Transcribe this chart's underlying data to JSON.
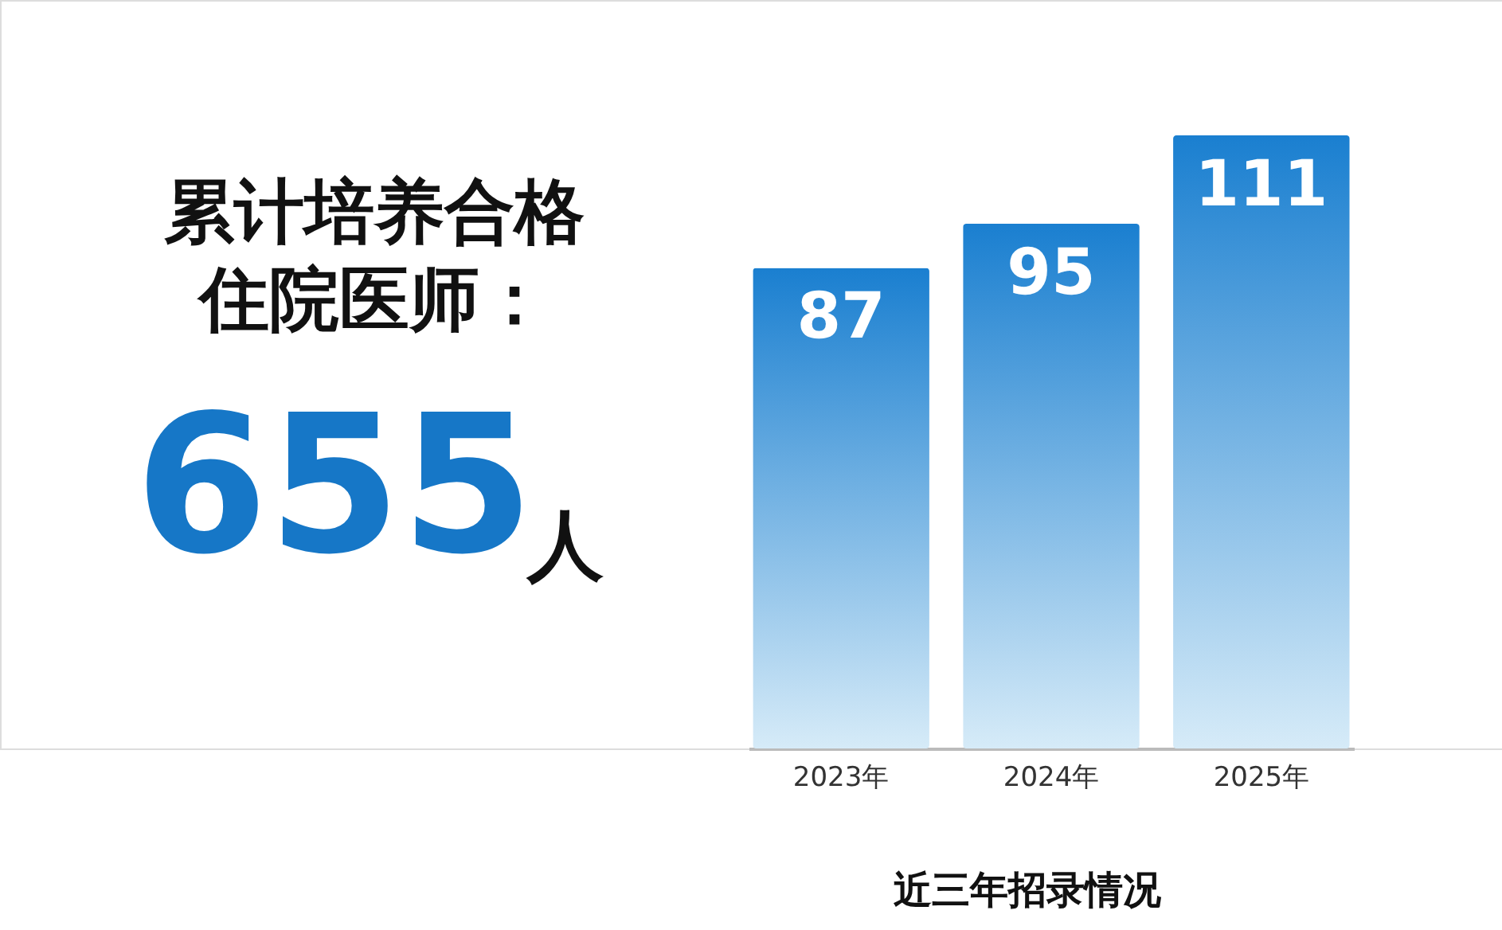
{
  "chart_data": {
    "type": "bar",
    "categories": [
      "2023年",
      "2024年",
      "2025年"
    ],
    "values": [
      87,
      95,
      111
    ],
    "color": "#1a7fd0",
    "data_labels": true,
    "annotations": [
      "累计培养合格",
      "住院医师：",
      "655",
      "人",
      "近三年招录情况"
    ]
  }
}
